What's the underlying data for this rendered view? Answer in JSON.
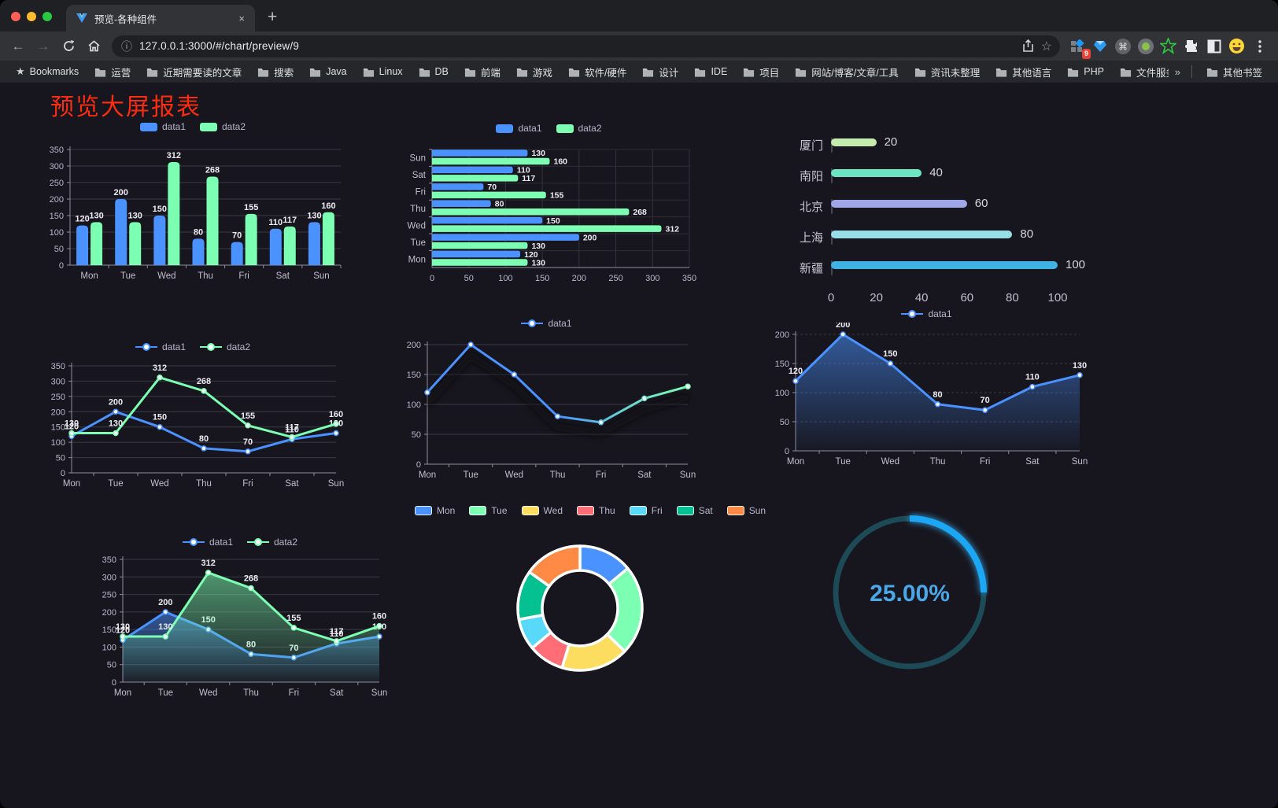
{
  "browser": {
    "tab_title": "预览-各种组件",
    "url": "127.0.0.1:3000/#/chart/preview/9",
    "new_tab_plus": "+",
    "close_x": "×",
    "extension_badge": "9",
    "overflow_chevron": "»",
    "other_bookmarks": "其他书签",
    "bookmarks": [
      "Bookmarks",
      "运营",
      "近期需要读的文章",
      "搜索",
      "Java",
      "Linux",
      "DB",
      "前端",
      "游戏",
      "软件/硬件",
      "设计",
      "IDE",
      "项目",
      "网站/博客/文章/工具",
      "资讯未整理",
      "其他语言",
      "PHP",
      "文件服务器"
    ],
    "traffic_lights": {
      "close": "#ff5f57",
      "minimize": "#febc2e",
      "zoom": "#28c840"
    }
  },
  "page": {
    "title": "预览大屏报表",
    "title_color": "#fb2c10",
    "background": "#17151d"
  },
  "chart_data": [
    {
      "id": "bar",
      "type": "bar",
      "categories": [
        "Mon",
        "Tue",
        "Wed",
        "Thu",
        "Fri",
        "Sat",
        "Sun"
      ],
      "series": [
        {
          "name": "data1",
          "color": "#4992ff",
          "values": [
            120,
            200,
            150,
            80,
            70,
            110,
            130
          ]
        },
        {
          "name": "data2",
          "color": "#7cffb2",
          "values": [
            130,
            130,
            312,
            268,
            155,
            117,
            160
          ]
        }
      ],
      "ylim": [
        0,
        350
      ],
      "ystep": 50,
      "legend_position": "top"
    },
    {
      "id": "hbar",
      "type": "bar-horizontal",
      "categories": [
        "Mon",
        "Tue",
        "Wed",
        "Thu",
        "Fri",
        "Sat",
        "Sun"
      ],
      "series": [
        {
          "name": "data1",
          "color": "#4992ff",
          "values": [
            120,
            200,
            150,
            80,
            70,
            110,
            130
          ]
        },
        {
          "name": "data2",
          "color": "#7cffb2",
          "values": [
            130,
            130,
            312,
            268,
            155,
            117,
            160
          ]
        }
      ],
      "xlim": [
        0,
        350
      ],
      "xstep": 50,
      "legend_position": "top"
    },
    {
      "id": "progress",
      "type": "progress-bars",
      "items": [
        {
          "label": "厦门",
          "value": 20,
          "color": "#c4ebad"
        },
        {
          "label": "南阳",
          "value": 40,
          "color": "#6be6c1"
        },
        {
          "label": "北京",
          "value": 60,
          "color": "#a0a7e6"
        },
        {
          "label": "上海",
          "value": 80,
          "color": "#96dee8"
        },
        {
          "label": "新疆",
          "value": 100,
          "color": "#3fb1e3"
        }
      ],
      "max": 100,
      "axis_ticks": [
        0,
        20,
        40,
        60,
        80,
        100
      ]
    },
    {
      "id": "line2",
      "type": "line",
      "categories": [
        "Mon",
        "Tue",
        "Wed",
        "Thu",
        "Fri",
        "Sat",
        "Sun"
      ],
      "series": [
        {
          "name": "data1",
          "color": "#4992ff",
          "values": [
            120,
            200,
            150,
            80,
            70,
            110,
            130
          ]
        },
        {
          "name": "data2",
          "color": "#7cffb2",
          "values": [
            130,
            130,
            312,
            268,
            155,
            117,
            160
          ]
        }
      ],
      "ylim": [
        0,
        350
      ],
      "ystep": 50,
      "show_labels": true
    },
    {
      "id": "lineGrad",
      "type": "line",
      "categories": [
        "Mon",
        "Tue",
        "Wed",
        "Thu",
        "Fri",
        "Sat",
        "Sun"
      ],
      "series": [
        {
          "name": "data1",
          "color": "#4992ff",
          "color_end": "#7cffb2",
          "gradient": true,
          "values": [
            120,
            200,
            150,
            80,
            70,
            110,
            130
          ]
        }
      ],
      "ylim": [
        0,
        200
      ],
      "ystep": 50,
      "show_labels": false,
      "shadow": true
    },
    {
      "id": "area1",
      "type": "line",
      "categories": [
        "Mon",
        "Tue",
        "Wed",
        "Thu",
        "Fri",
        "Sat",
        "Sun"
      ],
      "series": [
        {
          "name": "data1",
          "color": "#4992ff",
          "area": true,
          "values": [
            120,
            200,
            150,
            80,
            70,
            110,
            130
          ]
        }
      ],
      "ylim": [
        0,
        200
      ],
      "ystep": 50,
      "show_labels": true,
      "dashed_grid": true
    },
    {
      "id": "area2",
      "type": "line",
      "categories": [
        "Mon",
        "Tue",
        "Wed",
        "Thu",
        "Fri",
        "Sat",
        "Sun"
      ],
      "series": [
        {
          "name": "data1",
          "color": "#4992ff",
          "area": true,
          "values": [
            120,
            200,
            150,
            80,
            70,
            110,
            130
          ]
        },
        {
          "name": "data2",
          "color": "#7cffb2",
          "area": true,
          "values": [
            130,
            130,
            312,
            268,
            155,
            117,
            160
          ]
        }
      ],
      "ylim": [
        0,
        350
      ],
      "ystep": 50,
      "show_labels": true
    },
    {
      "id": "pie",
      "type": "pie",
      "categories": [
        "Mon",
        "Tue",
        "Wed",
        "Thu",
        "Fri",
        "Sat",
        "Sun"
      ],
      "values": [
        120,
        200,
        150,
        80,
        70,
        110,
        130
      ],
      "colors": [
        "#4992ff",
        "#7cffb2",
        "#fddd60",
        "#ff6e76",
        "#58d9f9",
        "#05c091",
        "#ff8a45"
      ],
      "legend_position": "top"
    },
    {
      "id": "gauge",
      "type": "gauge",
      "value": 25,
      "label": "25.00%",
      "color": "#1aa7f5",
      "track_color": "#1d4a57",
      "text_color": "#4aa8e8"
    }
  ]
}
